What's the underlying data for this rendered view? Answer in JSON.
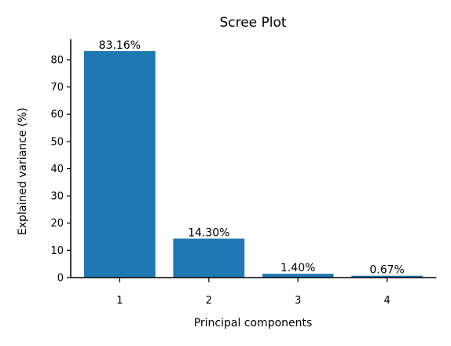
{
  "chart_data": {
    "type": "bar",
    "title": "Scree Plot",
    "xlabel": "Principal components",
    "ylabel": "Explained variance (%)",
    "categories": [
      "1",
      "2",
      "3",
      "4"
    ],
    "values": [
      83.16,
      14.3,
      1.4,
      0.67
    ],
    "data_labels": [
      "83.16%",
      "14.30%",
      "1.40%",
      "0.67%"
    ],
    "ylim": [
      0,
      87.5
    ],
    "yticks": [
      0,
      10,
      20,
      30,
      40,
      50,
      60,
      70,
      80
    ],
    "ytick_labels": [
      "0",
      "10",
      "20",
      "30",
      "40",
      "50",
      "60",
      "70",
      "80"
    ],
    "grid": false,
    "legend": "none",
    "bar_color": "#1f77b4"
  }
}
